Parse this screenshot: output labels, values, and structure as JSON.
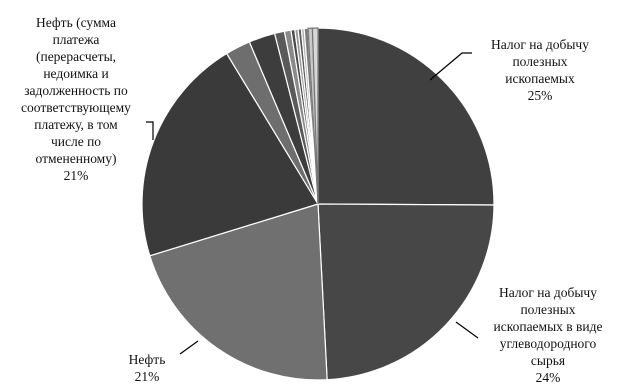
{
  "chart_data": {
    "type": "pie",
    "start_angle_deg": 0,
    "direction": "clockwise",
    "slices": [
      {
        "label": [
          "Налог на добычу",
          "полезных",
          "ископаемых"
        ],
        "value": 25,
        "pct_text": "25%",
        "color": "#404040",
        "stroke": "#ffffff"
      },
      {
        "label": [
          "Налог на добычу",
          "полезных",
          "ископаемых в виде",
          "углеводородного",
          "сырья"
        ],
        "value": 24,
        "pct_text": "24%",
        "color": "#474747",
        "stroke": "#ffffff"
      },
      {
        "label": [
          "Нефть"
        ],
        "value": 21,
        "pct_text": "21%",
        "color": "#707070",
        "stroke": "#ffffff"
      },
      {
        "label": [
          "Нефть (сумма",
          "платежа",
          "(перерасчеты,",
          "недоимка и",
          "задолженность по",
          "соответствующему",
          "платежу, в том",
          "числе по",
          "отмененному)"
        ],
        "value": 21,
        "pct_text": "21%",
        "color": "#3a3a3a",
        "stroke": "#ffffff"
      },
      {
        "value": 2.3,
        "color": "#6e6e6e",
        "stroke": "#ffffff"
      },
      {
        "value": 2.4,
        "color": "#3d3d3d",
        "stroke": "#ffffff"
      },
      {
        "value": 0.9,
        "color": "#5a5a5a",
        "stroke": "#ffffff"
      },
      {
        "value": 0.6,
        "color": "#8a8a8a",
        "stroke": "#ffffff"
      },
      {
        "value": 0.35,
        "color": "#4a4a4a",
        "stroke": "#ffffff"
      },
      {
        "value": 0.3,
        "color": "#9a9a9a",
        "stroke": "#ffffff"
      },
      {
        "value": 0.3,
        "color": "#5c5c5c",
        "stroke": "#ffffff"
      },
      {
        "value": 0.25,
        "color": "#b0b0b0",
        "stroke": "#ffffff"
      },
      {
        "value": 0.35,
        "color": "#7a7a7a",
        "stroke": "#ffffff"
      },
      {
        "value": 0.4,
        "color": "#c8c8c8",
        "stroke": "#777777"
      },
      {
        "value": 0.5,
        "color": "#d8d8d8",
        "stroke": "#777777"
      }
    ]
  }
}
